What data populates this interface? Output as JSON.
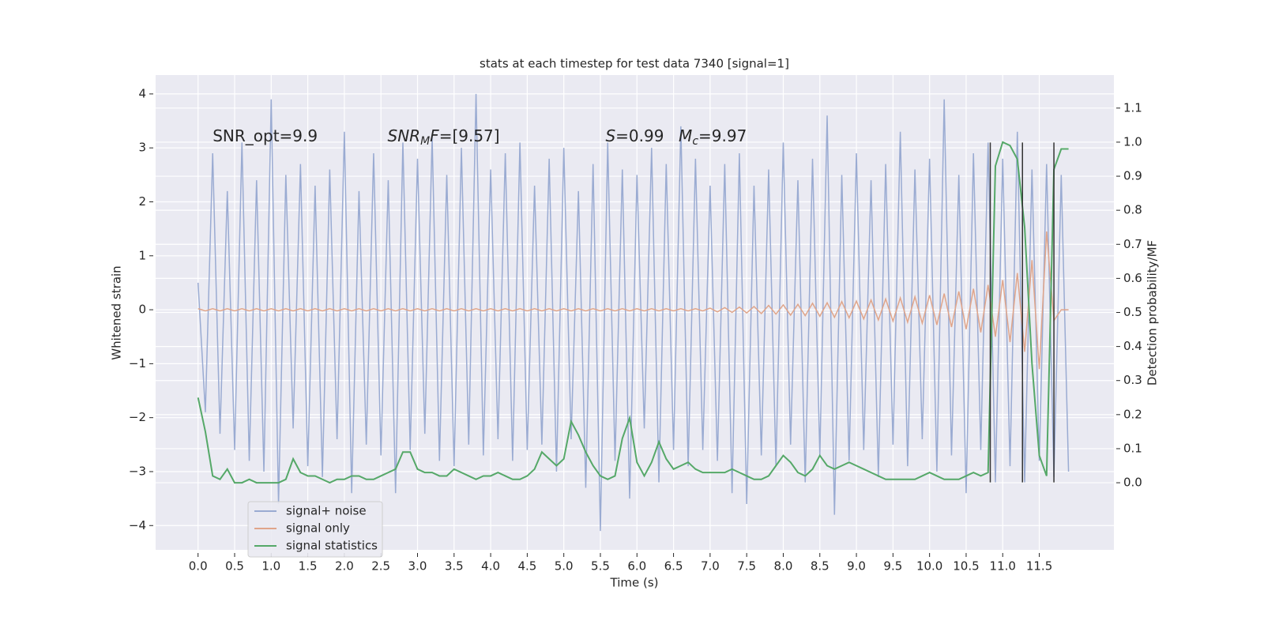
{
  "chart_data": {
    "type": "line",
    "title": "stats at each timestep for test data 7340 [signal=1]",
    "xlabel": "Time (s)",
    "ylabel": "Whitened strain",
    "y2label": "Detection probability/MF",
    "xlim": [
      -0.58,
      12.52
    ],
    "ylim": [
      -4.45,
      4.35
    ],
    "y2lim": [
      -0.197,
      1.197
    ],
    "xticks": [
      {
        "value": 0,
        "label": "0.0"
      },
      0.5,
      {
        "value": 1,
        "label": "1.0"
      },
      1.5,
      {
        "value": 2,
        "label": "2.0"
      },
      2.5,
      {
        "value": 3,
        "label": "3.0"
      },
      3.5,
      {
        "value": 4,
        "label": "4.0"
      },
      4.5,
      {
        "value": 5,
        "label": "5.0"
      },
      5.5,
      {
        "value": 6,
        "label": "6.0"
      },
      6.5,
      {
        "value": 7,
        "label": "7.0"
      },
      7.5,
      {
        "value": 8,
        "label": "8.0"
      },
      8.5,
      {
        "value": 9,
        "label": "9.0"
      },
      9.5,
      {
        "value": 10,
        "label": "10.0"
      },
      10.5,
      {
        "value": 11,
        "label": "11.0"
      },
      11.5
    ],
    "yticks": [
      {
        "value": -4,
        "label": "−4"
      },
      {
        "value": -3,
        "label": "−3"
      },
      {
        "value": -2,
        "label": "−2"
      },
      {
        "value": -1,
        "label": "−1"
      },
      0,
      1,
      2,
      3,
      4
    ],
    "y2ticks": [
      {
        "value": 0,
        "label": "0.0"
      },
      0.1,
      0.2,
      0.3,
      0.4,
      0.5,
      0.6,
      0.7,
      0.8,
      0.9,
      {
        "value": 1,
        "label": "1.0"
      },
      1.1
    ],
    "grid": true,
    "y2grid": true,
    "legend": "lower left",
    "x": [
      0,
      0.1,
      0.2,
      0.3,
      0.4,
      0.5,
      0.6,
      0.7,
      0.8,
      0.9,
      1,
      1.1,
      1.2,
      1.3,
      1.4,
      1.5,
      1.6,
      1.7,
      1.8,
      1.9,
      2,
      2.1,
      2.2,
      2.3,
      2.4,
      2.5,
      2.6,
      2.7,
      2.8,
      2.9,
      3,
      3.1,
      3.2,
      3.3,
      3.4,
      3.5,
      3.6,
      3.7,
      3.8,
      3.9,
      4,
      4.1,
      4.2,
      4.3,
      4.4,
      4.5,
      4.6,
      4.7,
      4.8,
      4.9,
      5,
      5.1,
      5.2,
      5.3,
      5.4,
      5.5,
      5.6,
      5.7,
      5.8,
      5.9,
      6,
      6.1,
      6.2,
      6.3,
      6.4,
      6.5,
      6.6,
      6.7,
      6.8,
      6.9,
      7,
      7.1,
      7.2,
      7.3,
      7.4,
      7.5,
      7.6,
      7.7,
      7.8,
      7.9,
      8,
      8.1,
      8.2,
      8.3,
      8.4,
      8.5,
      8.6,
      8.7,
      8.8,
      8.9,
      9,
      9.1,
      9.2,
      9.3,
      9.4,
      9.5,
      9.6,
      9.7,
      9.8,
      9.9,
      10,
      10.1,
      10.2,
      10.3,
      10.4,
      10.5,
      10.6,
      10.7,
      10.8,
      10.9,
      11,
      11.1,
      11.2,
      11.3,
      11.4,
      11.5,
      11.6,
      11.7,
      11.8,
      11.9
    ],
    "series": [
      {
        "name": "signal+ noise",
        "color": "#9aabd2",
        "values": [
          0.5,
          -1.9,
          2.9,
          -2.3,
          2.2,
          -2.6,
          3.1,
          -2.8,
          2.4,
          -3.0,
          3.9,
          -3.6,
          2.5,
          -2.2,
          2.7,
          -2.9,
          2.3,
          -3.1,
          2.6,
          -2.4,
          3.3,
          -3.4,
          2.2,
          -2.5,
          2.9,
          -2.7,
          2.4,
          -3.4,
          3.1,
          -2.6,
          2.8,
          -2.3,
          3.2,
          -2.8,
          2.5,
          -2.9,
          3.0,
          -2.5,
          4.0,
          -2.7,
          2.6,
          -2.4,
          2.9,
          -2.8,
          3.1,
          -2.6,
          2.3,
          -2.5,
          2.8,
          -3.0,
          3.0,
          -2.4,
          2.2,
          -3.3,
          2.7,
          -4.1,
          3.1,
          -2.8,
          2.6,
          -3.5,
          2.5,
          -2.2,
          3.0,
          -3.2,
          2.7,
          -2.6,
          3.4,
          -2.9,
          2.8,
          -2.6,
          2.3,
          -2.8,
          2.7,
          -3.4,
          2.9,
          -3.6,
          2.3,
          -2.7,
          2.6,
          -2.9,
          3.1,
          -2.5,
          2.4,
          -3.2,
          2.8,
          -2.7,
          3.6,
          -3.8,
          2.5,
          -2.8,
          2.9,
          -2.6,
          2.4,
          -3.1,
          2.7,
          -2.5,
          3.3,
          -2.9,
          2.6,
          -2.4,
          2.8,
          -3.0,
          3.9,
          -2.7,
          2.5,
          -3.4,
          2.9,
          -2.6,
          3.1,
          -3.2,
          2.8,
          -2.9,
          3.3,
          -3.2,
          2.6,
          -2.8,
          2.7,
          -3.1,
          2.5,
          -3.0
        ]
      },
      {
        "name": "signal only",
        "color": "#e0a58a",
        "values": [
          0.02,
          -0.02,
          0.02,
          -0.02,
          0.02,
          -0.02,
          0.02,
          -0.02,
          0.02,
          -0.02,
          0.02,
          -0.02,
          0.02,
          -0.02,
          0.02,
          -0.02,
          0.02,
          -0.02,
          0.02,
          -0.02,
          0.02,
          -0.02,
          0.02,
          -0.02,
          0.02,
          -0.02,
          0.02,
          -0.02,
          0.02,
          -0.02,
          0.02,
          -0.02,
          0.02,
          -0.02,
          0.02,
          -0.02,
          0.02,
          -0.02,
          0.02,
          -0.02,
          0.02,
          -0.02,
          0.02,
          -0.02,
          0.02,
          -0.02,
          0.02,
          -0.02,
          0.02,
          -0.02,
          0.02,
          -0.02,
          0.02,
          -0.02,
          0.02,
          -0.02,
          0.02,
          -0.02,
          0.02,
          -0.02,
          0.02,
          -0.02,
          0.02,
          -0.02,
          0.02,
          -0.02,
          0.02,
          -0.02,
          0.02,
          -0.02,
          0.03,
          -0.04,
          0.04,
          -0.05,
          0.05,
          -0.06,
          0.06,
          -0.07,
          0.08,
          -0.08,
          0.09,
          -0.1,
          0.1,
          -0.11,
          0.12,
          -0.12,
          0.13,
          -0.14,
          0.15,
          -0.15,
          0.16,
          -0.17,
          0.18,
          -0.19,
          0.2,
          -0.21,
          0.22,
          -0.23,
          0.24,
          -0.25,
          0.27,
          -0.28,
          0.3,
          -0.32,
          0.34,
          -0.36,
          0.39,
          -0.42,
          0.46,
          -0.5,
          0.55,
          -0.6,
          0.68,
          -0.78,
          0.92,
          -1.1,
          1.45,
          -0.2,
          0,
          0
        ]
      },
      {
        "name": "signal statistics",
        "color": "#55a868",
        "axis": "y2",
        "values": [
          0.25,
          0.15,
          0.02,
          0.01,
          0.04,
          0,
          0,
          0.01,
          0,
          0,
          0,
          0,
          0.01,
          0.07,
          0.03,
          0.02,
          0.02,
          0.01,
          0,
          0.01,
          0.01,
          0.02,
          0.02,
          0.01,
          0.01,
          0.02,
          0.03,
          0.04,
          0.09,
          0.09,
          0.04,
          0.03,
          0.03,
          0.02,
          0.02,
          0.04,
          0.03,
          0.02,
          0.01,
          0.02,
          0.02,
          0.03,
          0.02,
          0.01,
          0.01,
          0.02,
          0.04,
          0.09,
          0.07,
          0.05,
          0.07,
          0.18,
          0.14,
          0.09,
          0.05,
          0.02,
          0.01,
          0.02,
          0.13,
          0.19,
          0.06,
          0.02,
          0.06,
          0.12,
          0.07,
          0.04,
          0.05,
          0.06,
          0.04,
          0.03,
          0.03,
          0.03,
          0.03,
          0.04,
          0.03,
          0.02,
          0.01,
          0.01,
          0.02,
          0.05,
          0.08,
          0.06,
          0.03,
          0.02,
          0.04,
          0.08,
          0.05,
          0.04,
          0.05,
          0.06,
          0.05,
          0.04,
          0.03,
          0.02,
          0.01,
          0.01,
          0.01,
          0.01,
          0.01,
          0.02,
          0.03,
          0.02,
          0.01,
          0.01,
          0.01,
          0.02,
          0.03,
          0.02,
          0.03,
          0.93,
          1.0,
          0.99,
          0.95,
          0.75,
          0.35,
          0.08,
          0.02,
          0.92,
          0.98,
          0.98
        ]
      }
    ],
    "vlines": {
      "x": [
        10.83,
        11.27,
        11.7
      ],
      "ymin": -3.2,
      "ymax": 3.1,
      "color": "#333333"
    },
    "annotations": [
      {
        "x": 0.2,
        "y": 3.21,
        "parts": [
          {
            "text": "SNR_opt=9.9",
            "style": "normal"
          }
        ]
      },
      {
        "x": 2.59,
        "y": 3.21,
        "parts": [
          {
            "text": "SNR",
            "style": "italic"
          },
          {
            "text": "M",
            "style": "sub"
          },
          {
            "text": "F",
            "style": "italic"
          },
          {
            "text": "=[9.57]",
            "style": "normal"
          }
        ]
      },
      {
        "x": 5.57,
        "y": 3.21,
        "parts": [
          {
            "text": "S",
            "style": "italic"
          },
          {
            "text": "=0.99",
            "style": "normal"
          }
        ]
      },
      {
        "x": 6.57,
        "y": 3.21,
        "parts": [
          {
            "text": "M",
            "style": "italic"
          },
          {
            "text": "c",
            "style": "sub"
          },
          {
            "text": "=9.97",
            "style": "normal"
          }
        ]
      }
    ]
  }
}
